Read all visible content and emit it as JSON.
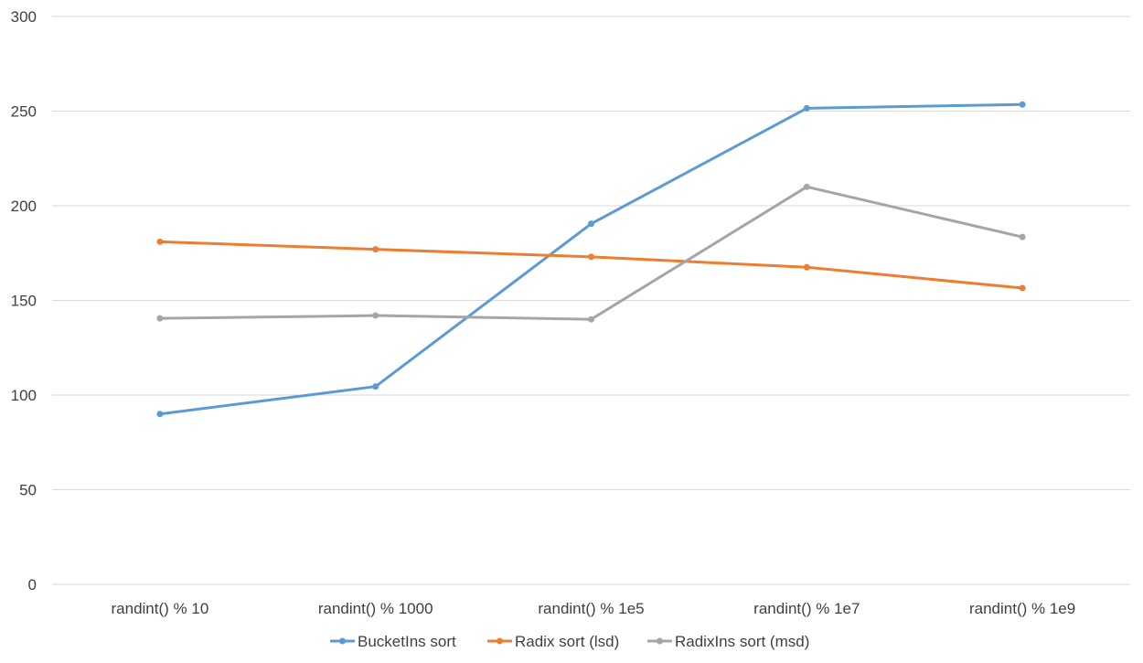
{
  "chart_data": {
    "type": "line",
    "title": "",
    "xlabel": "",
    "ylabel": "",
    "categories": [
      "randint() % 10",
      "randint() % 1000",
      "randint() % 1e5",
      "randint() % 1e7",
      "randint() % 1e9"
    ],
    "ylim": [
      0,
      300
    ],
    "yticks": [
      0,
      50,
      100,
      150,
      200,
      250,
      300
    ],
    "grid": "horizontal",
    "legend_position": "bottom",
    "series": [
      {
        "name": "BucketIns sort",
        "color": "#5B9BD5",
        "values": [
          90,
          104.5,
          190.5,
          251.5,
          253.5
        ]
      },
      {
        "name": "Radix sort (lsd)",
        "color": "#ED7D31",
        "values": [
          181,
          177,
          173,
          167.5,
          156.5
        ]
      },
      {
        "name": "RadixIns sort (msd)",
        "color": "#A5A5A5",
        "values": [
          140.5,
          142,
          140,
          210,
          183.5
        ]
      }
    ]
  }
}
